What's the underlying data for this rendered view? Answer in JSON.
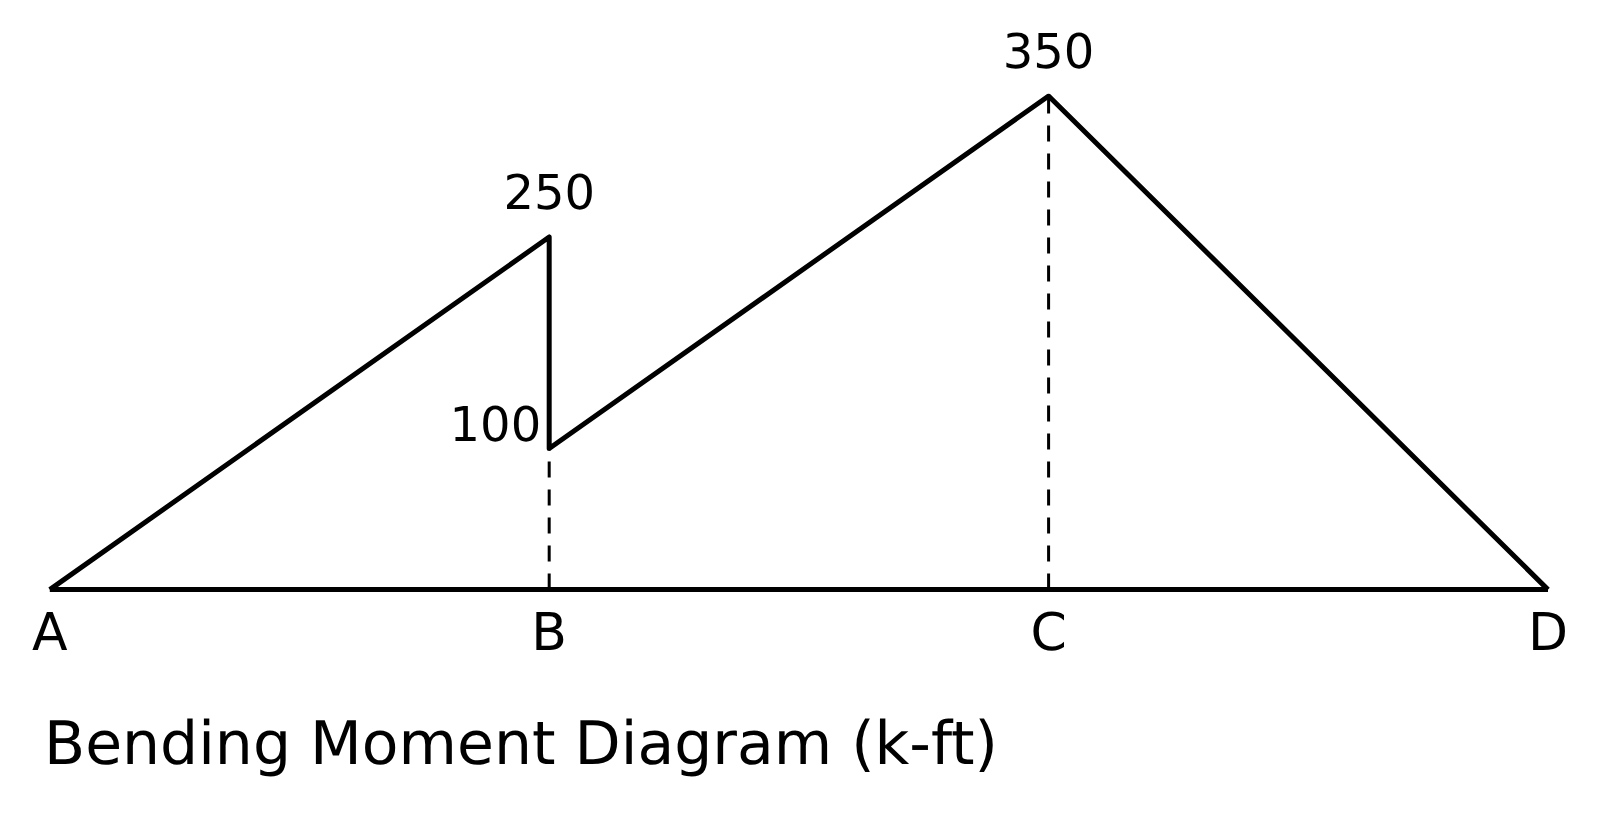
{
  "chart_data": {
    "type": "line",
    "title": "Bending Moment Diagram (k-ft)",
    "categories": [
      "A",
      "B",
      "C",
      "D"
    ],
    "series": [
      {
        "color": "#000000",
        "x": [
          "A",
          "B",
          "B",
          "C",
          "D"
        ],
        "values": [
          0,
          250,
          100,
          350,
          0
        ],
        "value_labels": [
          null,
          "250",
          "100",
          "350",
          null
        ]
      }
    ],
    "ref_lines": [
      {
        "axis": "x",
        "value": "B",
        "line_style": "dashed",
        "color": "#000000"
      },
      {
        "axis": "x",
        "value": "C",
        "line_style": "dashed",
        "color": "#000000"
      }
    ],
    "grid": false,
    "legend": false,
    "marker": "none",
    "line_style": "solid"
  }
}
